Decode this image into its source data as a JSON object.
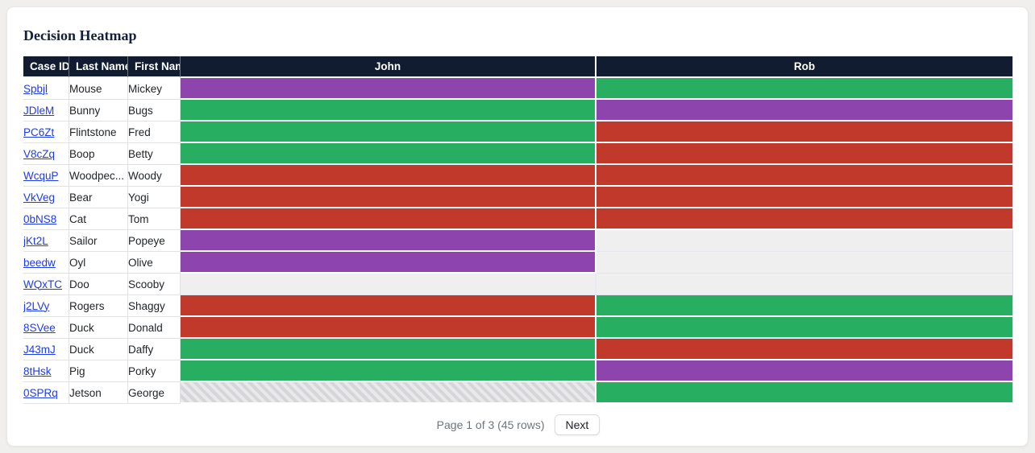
{
  "title": "Decision Heatmap",
  "colors": {
    "green": "#27ae60",
    "red": "#c0392b",
    "purple": "#8e44ad",
    "empty": "#efefef",
    "header_bg": "#121c30",
    "link": "#1f3be8"
  },
  "table": {
    "columns": [
      "Case ID",
      "Last Name",
      "First Name",
      "John",
      "Rob"
    ],
    "rows": [
      {
        "case_id": "Spbjl",
        "last_name": "Mouse",
        "first_name": "Mickey",
        "john": "purple",
        "rob": "green"
      },
      {
        "case_id": "JDleM",
        "last_name": "Bunny",
        "first_name": "Bugs",
        "john": "green",
        "rob": "purple"
      },
      {
        "case_id": "PC6Zt",
        "last_name": "Flintstone",
        "first_name": "Fred",
        "john": "green",
        "rob": "red"
      },
      {
        "case_id": "V8cZq",
        "last_name": "Boop",
        "first_name": "Betty",
        "john": "green",
        "rob": "red"
      },
      {
        "case_id": "WcquP",
        "last_name": "Woodpec...",
        "first_name": "Woody",
        "john": "red",
        "rob": "red"
      },
      {
        "case_id": "VkVeg",
        "last_name": "Bear",
        "first_name": "Yogi",
        "john": "red",
        "rob": "red"
      },
      {
        "case_id": "0bNS8",
        "last_name": "Cat",
        "first_name": "Tom",
        "john": "red",
        "rob": "red"
      },
      {
        "case_id": "jKt2L",
        "last_name": "Sailor",
        "first_name": "Popeye",
        "john": "purple",
        "rob": "empty"
      },
      {
        "case_id": "beedw",
        "last_name": "Oyl",
        "first_name": "Olive",
        "john": "purple",
        "rob": "empty"
      },
      {
        "case_id": "WQxTC",
        "last_name": "Doo",
        "first_name": "Scooby",
        "john": "empty",
        "rob": "empty"
      },
      {
        "case_id": "j2LVy",
        "last_name": "Rogers",
        "first_name": "Shaggy",
        "john": "red",
        "rob": "green"
      },
      {
        "case_id": "8SVee",
        "last_name": "Duck",
        "first_name": "Donald",
        "john": "red",
        "rob": "green"
      },
      {
        "case_id": "J43mJ",
        "last_name": "Duck",
        "first_name": "Daffy",
        "john": "green",
        "rob": "red"
      },
      {
        "case_id": "8tHsk",
        "last_name": "Pig",
        "first_name": "Porky",
        "john": "green",
        "rob": "purple"
      },
      {
        "case_id": "0SPRq",
        "last_name": "Jetson",
        "first_name": "George",
        "john": "striped",
        "rob": "green"
      }
    ]
  },
  "pagination": {
    "status": "Page 1 of 3 (45 rows)",
    "next_label": "Next"
  }
}
